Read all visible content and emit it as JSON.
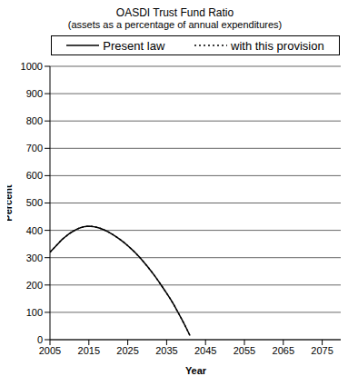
{
  "chart_data": {
    "type": "line",
    "title": "OASDI Trust Fund Ratio",
    "subtitle": "(assets as a percentage of annual expenditures)",
    "x_label": "Year",
    "y_label": "Percent",
    "x": [
      2005,
      2006,
      2007,
      2008,
      2009,
      2010,
      2011,
      2012,
      2013,
      2014,
      2015,
      2016,
      2017,
      2018,
      2019,
      2020,
      2021,
      2022,
      2023,
      2024,
      2025,
      2026,
      2027,
      2028,
      2029,
      2030,
      2031,
      2032,
      2033,
      2034,
      2035,
      2036,
      2037,
      2038,
      2039,
      2040,
      2041
    ],
    "series": [
      {
        "name": "Present law",
        "color": "#000000",
        "line_style": "solid",
        "values": [
          320,
          335,
          350,
          365,
          377,
          388,
          397,
          405,
          410,
          414,
          415,
          414,
          411,
          407,
          401,
          394,
          386,
          377,
          367,
          356,
          344,
          331,
          317,
          302,
          286,
          269,
          251,
          232,
          212,
          191,
          170,
          148,
          124,
          98,
          72,
          44,
          15
        ]
      },
      {
        "name": "with this provision",
        "color": "#000000",
        "line_style": "dotted",
        "values": [
          320,
          335,
          350,
          365,
          377,
          388,
          397,
          405,
          410,
          414,
          415,
          414,
          411,
          407,
          401,
          394,
          386,
          377,
          367,
          356,
          344,
          331,
          317,
          302,
          286,
          269,
          251,
          232,
          212,
          191,
          170,
          148,
          124,
          98,
          72,
          44,
          15
        ]
      }
    ],
    "xlim": [
      2005,
      2080
    ],
    "xticks": [
      2005,
      2015,
      2025,
      2035,
      2045,
      2055,
      2065,
      2075
    ],
    "ylim": [
      0,
      1000
    ],
    "yticks": [
      0,
      100,
      200,
      300,
      400,
      500,
      600,
      700,
      800,
      900,
      1000
    ],
    "grid": true,
    "legend": "top"
  }
}
